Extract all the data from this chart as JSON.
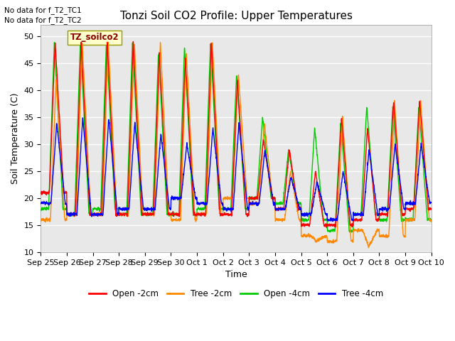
{
  "title": "Tonzi Soil CO2 Profile: Upper Temperatures",
  "xlabel": "Time",
  "ylabel": "Soil Temperature (C)",
  "ylim": [
    10,
    52
  ],
  "yticks": [
    10,
    15,
    20,
    25,
    30,
    35,
    40,
    45,
    50
  ],
  "no_data_text1": "No data for f_T2_TC1",
  "no_data_text2": "No data for f_T2_TC2",
  "legend_label_box": "TZ_soilco2",
  "legend_entries": [
    "Open -2cm",
    "Tree -2cm",
    "Open -4cm",
    "Tree -4cm"
  ],
  "bg_color": "#e8e8e8",
  "line_colors": [
    "#ff0000",
    "#ff8800",
    "#00cc00",
    "#0000ff"
  ],
  "xtick_labels": [
    "Sep 25",
    "Sep 26",
    "Sep 27",
    "Sep 28",
    "Sep 29",
    "Sep 30",
    "Oct 1",
    "Oct 2",
    "Oct 3",
    "Oct 4",
    "Oct 5",
    "Oct 6",
    "Oct 7",
    "Oct 8",
    "Oct 9",
    "Oct 10"
  ],
  "n_days": 15,
  "title_fontsize": 11,
  "axis_fontsize": 9,
  "tick_fontsize": 8
}
